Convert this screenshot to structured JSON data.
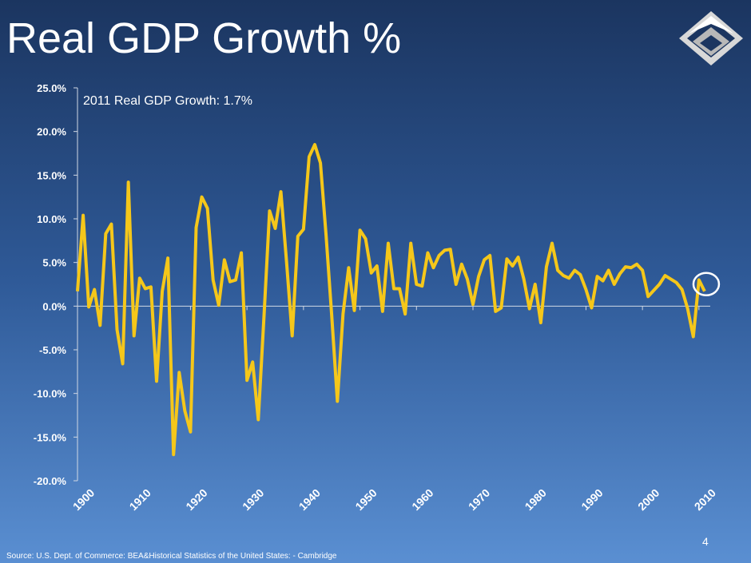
{
  "title": "Real GDP Growth %",
  "page_number": "4",
  "source": "Source:  U.S. Dept. of Commerce: BEA&Historical Statistics of the United States: - Cambridge",
  "chart_data": {
    "type": "line",
    "annotation": "2011 Real GDP Growth:  1.7%",
    "x": [
      1900,
      1901,
      1902,
      1903,
      1904,
      1905,
      1906,
      1907,
      1908,
      1909,
      1910,
      1911,
      1912,
      1913,
      1914,
      1915,
      1916,
      1917,
      1918,
      1919,
      1920,
      1921,
      1922,
      1923,
      1924,
      1925,
      1926,
      1927,
      1928,
      1929,
      1930,
      1931,
      1932,
      1933,
      1934,
      1935,
      1936,
      1937,
      1938,
      1939,
      1940,
      1941,
      1942,
      1943,
      1944,
      1945,
      1946,
      1947,
      1948,
      1949,
      1950,
      1951,
      1952,
      1953,
      1954,
      1955,
      1956,
      1957,
      1958,
      1959,
      1960,
      1961,
      1962,
      1963,
      1964,
      1965,
      1966,
      1967,
      1968,
      1969,
      1970,
      1971,
      1972,
      1973,
      1974,
      1975,
      1976,
      1977,
      1978,
      1979,
      1980,
      1981,
      1982,
      1983,
      1984,
      1985,
      1986,
      1987,
      1988,
      1989,
      1990,
      1991,
      1992,
      1993,
      1994,
      1995,
      1996,
      1997,
      1998,
      1999,
      2000,
      2001,
      2002,
      2003,
      2004,
      2005,
      2006,
      2007,
      2008,
      2009,
      2010,
      2011
    ],
    "series": [
      {
        "color": "#f5c71a",
        "values": [
          1.7,
          10.4,
          -0.1,
          1.9,
          -2.2,
          8.3,
          9.4,
          -2.7,
          -6.6,
          14.2,
          -3.4,
          3.2,
          2.0,
          2.2,
          -8.6,
          1.7,
          5.5,
          -17.0,
          -7.6,
          -12.0,
          -14.4,
          9.0,
          12.5,
          11.2,
          3.0,
          0.1,
          5.3,
          2.8,
          3.0,
          6.1,
          -8.5,
          -6.4,
          -13.0,
          -1.3,
          10.9,
          8.9,
          13.1,
          5.1,
          -3.4,
          8.0,
          8.8,
          17.1,
          18.5,
          16.4,
          8.1,
          -1.1,
          -10.9,
          -0.9,
          4.4,
          -0.5,
          8.7,
          7.7,
          3.8,
          4.6,
          -0.6,
          7.2,
          2.0,
          2.0,
          -0.9,
          7.2,
          2.5,
          2.3,
          6.1,
          4.4,
          5.8,
          6.4,
          6.5,
          2.5,
          4.8,
          3.1,
          0.2,
          3.4,
          5.3,
          5.8,
          -0.6,
          -0.2,
          5.4,
          4.6,
          5.6,
          3.1,
          -0.3,
          2.5,
          -1.9,
          4.5,
          7.2,
          4.1,
          3.5,
          3.2,
          4.1,
          3.6,
          1.9,
          -0.2,
          3.4,
          2.9,
          4.1,
          2.5,
          3.7,
          4.5,
          4.4,
          4.8,
          4.1,
          1.1,
          1.8,
          2.5,
          3.5,
          3.1,
          2.7,
          1.9,
          -0.3,
          -3.5,
          3.0,
          1.7
        ]
      }
    ],
    "xlim": [
      1900,
      2012
    ],
    "xticks": [
      1900,
      1910,
      1920,
      1930,
      1940,
      1950,
      1960,
      1970,
      1980,
      1990,
      2000,
      2010
    ],
    "ylim": [
      -20,
      25
    ],
    "yticks": [
      {
        "value": -20,
        "label": "-20.0%"
      },
      {
        "value": -15,
        "label": "-15.0%"
      },
      {
        "value": -10,
        "label": "-10.0%"
      },
      {
        "value": -5,
        "label": "-5.0%"
      },
      {
        "value": 0,
        "label": "0.0%"
      },
      {
        "value": 5,
        "label": "5.0%"
      },
      {
        "value": 10,
        "label": "10.0%"
      },
      {
        "value": 15,
        "label": "15.0%"
      },
      {
        "value": 20,
        "label": "20.0%"
      },
      {
        "value": 25,
        "label": "25.0%"
      }
    ]
  }
}
